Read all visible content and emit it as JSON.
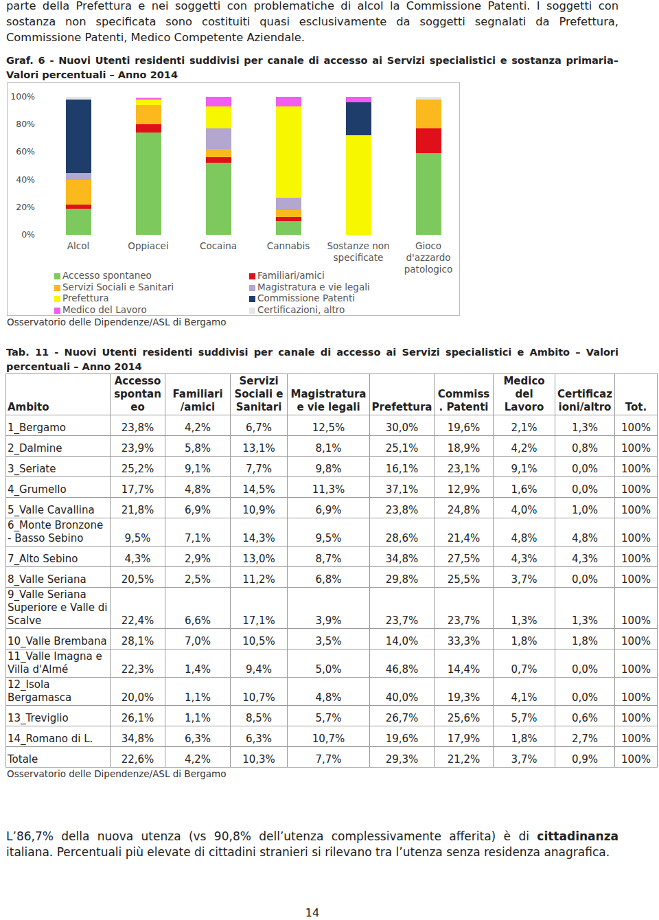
{
  "intro": "parte della Prefettura e nei soggetti con problematiche di alcol la Commissione Patenti. I soggetti con sostanza non specificata sono costituiti quasi esclusivamente da soggetti segnalati da Prefettura, Commissione Patenti, Medico Competente Aziendale.",
  "chart_data": {
    "type": "bar",
    "title": "Graf. 6 - Nuovi Utenti residenti suddivisi per canale di accesso ai Servizi specialistici e sostanza primaria– Valori percentuali – Anno 2014",
    "stacked": true,
    "grid": false,
    "categories": [
      "Alcol",
      "Oppiacei",
      "Cocaina",
      "Cannabis",
      "Sostanze non specificate",
      "Gioco d'azzardo patologico"
    ],
    "series": [
      {
        "name": "Accesso spontaneo",
        "color": "#7dc95e",
        "values": [
          19,
          74,
          52,
          10,
          0,
          59
        ]
      },
      {
        "name": "Familiari/amici",
        "color": "#e0101a",
        "values": [
          3,
          6,
          4,
          3,
          0,
          18
        ]
      },
      {
        "name": "Servizi Sociali e Sanitari",
        "color": "#fbb91d",
        "values": [
          18,
          14,
          6,
          5,
          0,
          21
        ]
      },
      {
        "name": "Magistratura e vie legali",
        "color": "#b3a6cf",
        "values": [
          5,
          0,
          15,
          9,
          0,
          0
        ]
      },
      {
        "name": "Prefettura",
        "color": "#f7f700",
        "values": [
          0,
          4,
          16,
          66,
          72,
          0
        ]
      },
      {
        "name": "Commissione Patenti",
        "color": "#1f3d6b",
        "values": [
          53,
          0,
          0,
          0,
          24,
          0
        ]
      },
      {
        "name": "Medico del Lavoro",
        "color": "#f15cf2",
        "values": [
          0,
          1,
          7,
          7,
          4,
          0
        ]
      },
      {
        "name": "Certificazioni, altro",
        "color": "#e6e6e6",
        "values": [
          2,
          1,
          0,
          0,
          0,
          2
        ]
      }
    ],
    "ylim": [
      0,
      100
    ],
    "yticks": [
      {
        "value": 0,
        "label": "0%"
      },
      {
        "value": 20,
        "label": "20%"
      },
      {
        "value": 40,
        "label": "40%"
      },
      {
        "value": 60,
        "label": "60%"
      },
      {
        "value": 80,
        "label": "80%"
      },
      {
        "value": 100,
        "label": "100%"
      }
    ],
    "annotations": [
      "Osservatorio delle Dipendenze/ASL di Bergamo"
    ]
  },
  "table": {
    "title": "Tab. 11 - Nuovi Utenti residenti suddivisi per canale di accesso ai Servizi specialistici e Ambito – Valori percentuali – Anno 2014",
    "header": [
      "Ambito",
      "Accesso spontaneo",
      "Familiari /amici",
      "Servizi Sociali e Sanitari",
      "Magistratura e vie legali",
      "Prefettura",
      "Commiss. Patenti",
      "Medico del Lavoro",
      "Certificazioni/altro",
      "Tot."
    ],
    "rows": [
      [
        "1_Bergamo",
        "23,8%",
        "4,2%",
        "6,7%",
        "12,5%",
        "30,0%",
        "19,6%",
        "2,1%",
        "1,3%",
        "100%"
      ],
      [
        "2_Dalmine",
        "23,9%",
        "5,8%",
        "13,1%",
        "8,1%",
        "25,1%",
        "18,9%",
        "4,2%",
        "0,8%",
        "100%"
      ],
      [
        "3_Seriate",
        "25,2%",
        "9,1%",
        "7,7%",
        "9,8%",
        "16,1%",
        "23,1%",
        "9,1%",
        "0,0%",
        "100%"
      ],
      [
        "4_Grumello",
        "17,7%",
        "4,8%",
        "14,5%",
        "11,3%",
        "37,1%",
        "12,9%",
        "1,6%",
        "0,0%",
        "100%"
      ],
      [
        "5_Valle Cavallina",
        "21,8%",
        "6,9%",
        "10,9%",
        "6,9%",
        "23,8%",
        "24,8%",
        "4,0%",
        "1,0%",
        "100%"
      ],
      [
        "6_Monte Bronzone - Basso Sebino",
        "9,5%",
        "7,1%",
        "14,3%",
        "9,5%",
        "28,6%",
        "21,4%",
        "4,8%",
        "4,8%",
        "100%"
      ],
      [
        "7_Alto Sebino",
        "4,3%",
        "2,9%",
        "13,0%",
        "8,7%",
        "34,8%",
        "27,5%",
        "4,3%",
        "4,3%",
        "100%"
      ],
      [
        "8_Valle Seriana",
        "20,5%",
        "2,5%",
        "11,2%",
        "6,8%",
        "29,8%",
        "25,5%",
        "3,7%",
        "0,0%",
        "100%"
      ],
      [
        "9_Valle Seriana Superiore e Valle di Scalve",
        "22,4%",
        "6,6%",
        "17,1%",
        "3,9%",
        "23,7%",
        "23,7%",
        "1,3%",
        "1,3%",
        "100%"
      ],
      [
        "10_Valle Brembana",
        "28,1%",
        "7,0%",
        "10,5%",
        "3,5%",
        "14,0%",
        "33,3%",
        "1,8%",
        "1,8%",
        "100%"
      ],
      [
        "11_Valle Imagna e Villa d'Almé",
        "22,3%",
        "1,4%",
        "9,4%",
        "5,0%",
        "46,8%",
        "14,4%",
        "0,7%",
        "0,0%",
        "100%"
      ],
      [
        "12_Isola Bergamasca",
        "20,0%",
        "1,1%",
        "10,7%",
        "4,8%",
        "40,0%",
        "19,3%",
        "4,1%",
        "0,0%",
        "100%"
      ],
      [
        "13_Treviglio",
        "26,1%",
        "1,1%",
        "8,5%",
        "5,7%",
        "26,7%",
        "25,6%",
        "5,7%",
        "0,6%",
        "100%"
      ],
      [
        "14_Romano di L.",
        "34,8%",
        "6,3%",
        "6,3%",
        "10,7%",
        "19,6%",
        "17,9%",
        "1,8%",
        "2,7%",
        "100%"
      ],
      [
        "Totale",
        "22,6%",
        "4,2%",
        "10,3%",
        "7,7%",
        "29,3%",
        "21,2%",
        "3,7%",
        "0,9%",
        "100%"
      ]
    ],
    "source": "Osservatorio delle Dipendenze/ASL di Bergamo"
  },
  "closing": [
    {
      "text": "L’86,7% della nuova utenza (vs 90,8% dell’utenza complessivamente afferita) è di ",
      "bold": false
    },
    {
      "text": "cittadinanza",
      "bold": true
    },
    {
      "text": " italiana. Percentuali più elevate di cittadini stranieri si rilevano tra l’utenza senza residenza anagrafica.",
      "bold": false
    }
  ],
  "page_number": "14"
}
